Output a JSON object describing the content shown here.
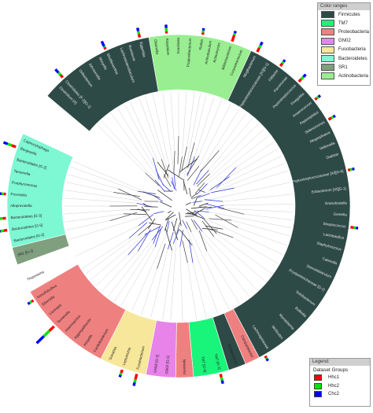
{
  "legend_ranges": {
    "title": "Color ranges",
    "items": [
      {
        "label": "Firmicutes",
        "color": "#2e4a46"
      },
      {
        "label": "TM7",
        "color": "#19f57a"
      },
      {
        "label": "Proteobacteria",
        "color": "#ef8080"
      },
      {
        "label": "GN02",
        "color": "#e883ea"
      },
      {
        "label": "Fusobacteria",
        "color": "#f6e79a"
      },
      {
        "label": "Bacteroidetes",
        "color": "#7ef7d3"
      },
      {
        "label": "SR1",
        "color": "#7f9f7f"
      },
      {
        "label": "Actinobacteria",
        "color": "#98ee90"
      }
    ]
  },
  "legend_groups": {
    "title": "Legend:",
    "subtitle": "Dataset Groups",
    "items": [
      {
        "label": "Hhc1",
        "color": "#ff0000"
      },
      {
        "label": "Hhc2",
        "color": "#00e600"
      },
      {
        "label": "Chc2",
        "color": "#0000ff"
      }
    ]
  },
  "sectors": [
    {
      "phylum": "Firmicutes",
      "start": -50,
      "end": -10,
      "color": "#2e4a46"
    },
    {
      "phylum": "Actinobacteria",
      "start": -10,
      "end": 25,
      "color": "#98ee90"
    },
    {
      "phylum": "Firmicutes",
      "start": 25,
      "end": 152,
      "color": "#2e4a46"
    },
    {
      "phylum": "Proteobacteria",
      "start": 152,
      "end": 157,
      "color": "#ef8080"
    },
    {
      "phylum": "Firmicutes",
      "start": 157,
      "end": 163,
      "color": "#2e4a46"
    },
    {
      "phylum": "TM7",
      "start": 163,
      "end": 175,
      "color": "#19f57a"
    },
    {
      "phylum": "Proteobacteria",
      "start": 175,
      "end": 181,
      "color": "#ef8080"
    },
    {
      "phylum": "GN02",
      "start": 181,
      "end": 191,
      "color": "#e883ea"
    },
    {
      "phylum": "Fusobacteria",
      "start": 191,
      "end": 207,
      "color": "#f6e79a"
    },
    {
      "phylum": "Proteobacteria",
      "start": 207,
      "end": 240,
      "color": "#ef8080"
    },
    {
      "phylum": "SR1",
      "start": 250,
      "end": 256,
      "color": "#7f9f7f"
    },
    {
      "phylum": "Bacteroidetes",
      "start": 256,
      "end": 295,
      "color": "#7ef7d3"
    }
  ],
  "labels": [
    {
      "text": "Clostridium [X]",
      "angle": -45
    },
    {
      "text": "Clostridiales [F-2][G-1]",
      "angle": -42
    },
    {
      "text": "Oribacterium",
      "angle": -36
    },
    {
      "text": "Johnsonella",
      "angle": -32
    },
    {
      "text": "Moryella",
      "angle": -28
    },
    {
      "text": "Shuttleworthia",
      "angle": -25
    },
    {
      "text": "Lachnoanaerobaculum",
      "angle": -20
    },
    {
      "text": "Roseburia",
      "angle": -17
    },
    {
      "text": "Eggerthia",
      "angle": -13
    },
    {
      "text": "Olsenella",
      "angle": -8
    },
    {
      "text": "Atopobium",
      "angle": -4
    },
    {
      "text": "Scardovia",
      "angle": 0
    },
    {
      "text": "Propionibacterium",
      "angle": 4
    },
    {
      "text": "Rothia",
      "angle": 8
    },
    {
      "text": "Actinobaculum",
      "angle": 11
    },
    {
      "text": "Actinomyces",
      "angle": 14
    },
    {
      "text": "Bifidobacterium",
      "angle": 18
    },
    {
      "text": "Corynebacterium",
      "angle": 22
    },
    {
      "text": "Mogibacterium",
      "angle": 27
    },
    {
      "text": "Peptostreptococcaceae [XI][G-1]",
      "angle": 32
    },
    {
      "text": "Filifactor",
      "angle": 36
    },
    {
      "text": "Parvimonas",
      "angle": 40
    },
    {
      "text": "Peptostreptococcus",
      "angle": 44
    },
    {
      "text": "Finegoldia",
      "angle": 48
    },
    {
      "text": "Anaerococcus",
      "angle": 52
    },
    {
      "text": "Peptoniphilus",
      "angle": 56
    },
    {
      "text": "Selenomonas",
      "angle": 60
    },
    {
      "text": "Megasphaera",
      "angle": 64
    },
    {
      "text": "Veillonella",
      "angle": 68
    },
    {
      "text": "Dialister",
      "angle": 72
    },
    {
      "text": "Peptostreptococcaceae [XI][G-6]",
      "angle": 78
    },
    {
      "text": "Eubacterium [XI][G-1]",
      "angle": 84
    },
    {
      "text": "Granulicatella",
      "angle": 89
    },
    {
      "text": "Gemella",
      "angle": 93
    },
    {
      "text": "Streptococcus",
      "angle": 97
    },
    {
      "text": "Lactobacillus",
      "angle": 101
    },
    {
      "text": "Staphylococcus",
      "angle": 105
    },
    {
      "text": "Catonella",
      "angle": 110
    },
    {
      "text": "Stomatobaculum",
      "angle": 115
    },
    {
      "text": "Erysipelotrichaceae [G-1]",
      "angle": 120
    },
    {
      "text": "Solobacterium",
      "angle": 126
    },
    {
      "text": "Bulleidia",
      "angle": 131
    },
    {
      "text": "Mycoplasma",
      "angle": 137
    },
    {
      "text": "Mollicutes",
      "angle": 142
    },
    {
      "text": "Lachnospiraceae",
      "angle": 148
    },
    {
      "text": "Campylobacter",
      "angle": 154
    },
    {
      "text": "Erysipelothrix",
      "angle": 160
    },
    {
      "text": "TM7 [G-1]",
      "angle": 166
    },
    {
      "text": "TM7 [G-5]",
      "angle": 171
    },
    {
      "text": "Neisseria",
      "angle": 178
    },
    {
      "text": "GN02 [G-1]",
      "angle": 184
    },
    {
      "text": "GN02 [G-2]",
      "angle": 188
    },
    {
      "text": "Fusobacterium",
      "angle": 194
    },
    {
      "text": "Leptotrichia",
      "angle": 199
    },
    {
      "text": "Sneathia",
      "angle": 204
    },
    {
      "text": "Cardiobacterium",
      "angle": 210
    },
    {
      "text": "Kingella",
      "angle": 214
    },
    {
      "text": "Aggregatibacter",
      "angle": 218
    },
    {
      "text": "Haemophilus",
      "angle": 222
    },
    {
      "text": "Tannerella",
      "angle": 226
    },
    {
      "text": "Lautropia",
      "angle": 230
    },
    {
      "text": "Eikenella",
      "angle": 234
    },
    {
      "text": "Desulfobulbus",
      "angle": 237
    },
    {
      "text": "Treponema",
      "angle": 244
    },
    {
      "text": "SR1 [G-1]",
      "angle": 253
    },
    {
      "text": "Bacteroidales [G-2]",
      "angle": 258
    },
    {
      "text": "Bacteroidetes [G-5]",
      "angle": 262
    },
    {
      "text": "Bacteroidetes [G-3]",
      "angle": 266
    },
    {
      "text": "Alloprevotella",
      "angle": 270
    },
    {
      "text": "Prevotella",
      "angle": 274
    },
    {
      "text": "Porphyromonas",
      "angle": 278
    },
    {
      "text": "Tannerella",
      "angle": 282
    },
    {
      "text": "Bacteroidales [G-2]",
      "angle": 286
    },
    {
      "text": "Bergeyella",
      "angle": 290
    },
    {
      "text": "Capnocytophaga",
      "angle": 293
    }
  ],
  "dataset_bars": [
    {
      "angle": -42,
      "values": [
        0.3,
        0.3,
        0.4
      ]
    },
    {
      "angle": -25,
      "values": [
        0.2,
        0.1,
        0.5
      ]
    },
    {
      "angle": -13,
      "values": [
        0.3,
        0.3,
        0.3
      ]
    },
    {
      "angle": -4,
      "values": [
        0.2,
        0.3,
        0.3
      ]
    },
    {
      "angle": 8,
      "values": [
        0.2,
        0.2,
        0.2
      ]
    },
    {
      "angle": 18,
      "values": [
        0.6,
        0.2,
        0.2
      ]
    },
    {
      "angle": 27,
      "values": [
        0.4,
        0.3,
        0.3
      ]
    },
    {
      "angle": 36,
      "values": [
        0.3,
        0.2,
        0.2
      ]
    },
    {
      "angle": 44,
      "values": [
        0.3,
        0.3,
        0.3
      ]
    },
    {
      "angle": 52,
      "values": [
        0.2,
        0.2,
        0.2
      ]
    },
    {
      "angle": 60,
      "values": [
        0.3,
        0.2,
        0.2
      ]
    },
    {
      "angle": 78,
      "values": [
        0.2,
        0.2,
        0.2
      ]
    },
    {
      "angle": 97,
      "values": [
        0.3,
        0.2,
        0.2
      ]
    },
    {
      "angle": 150,
      "values": [
        0.2,
        0.1,
        0.2
      ]
    },
    {
      "angle": 166,
      "values": [
        0.3,
        0.3,
        0.3
      ]
    },
    {
      "angle": 194,
      "values": [
        0.5,
        0.3,
        0.3
      ]
    },
    {
      "angle": 199,
      "values": [
        0.3,
        0.2,
        0.2
      ]
    },
    {
      "angle": 226,
      "values": [
        0.6,
        0.7,
        0.9
      ]
    },
    {
      "angle": 237,
      "values": [
        0.2,
        0.2,
        0.2
      ]
    },
    {
      "angle": 262,
      "values": [
        0.3,
        0.3,
        0.2
      ]
    },
    {
      "angle": 266,
      "values": [
        0.3,
        0.3,
        0.2
      ]
    },
    {
      "angle": 274,
      "values": [
        0.2,
        0.2,
        0.2
      ]
    },
    {
      "angle": 290,
      "values": [
        0.4,
        0.4,
        0.4
      ]
    }
  ]
}
